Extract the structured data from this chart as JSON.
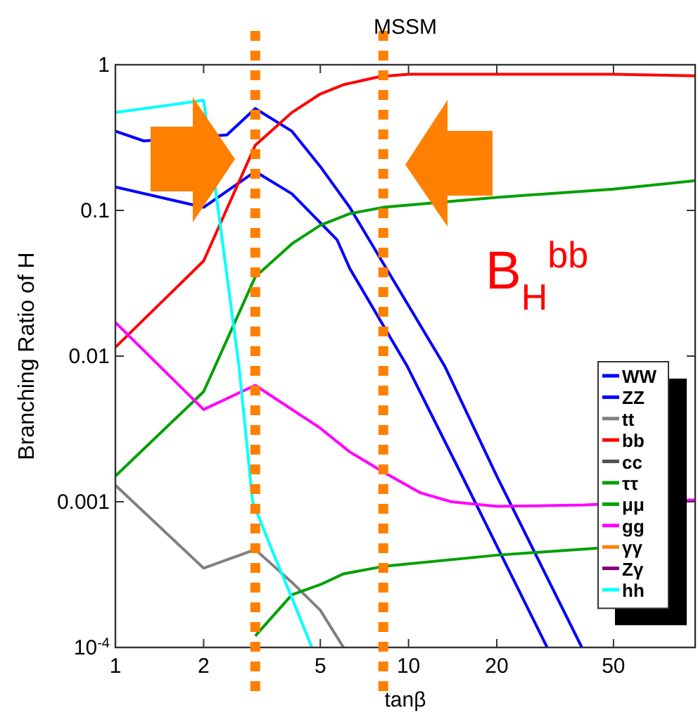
{
  "chart_data": {
    "type": "line",
    "title": "MSSM",
    "xlabel": "tanβ",
    "ylabel": "Branching Ratio of H",
    "log": "xy",
    "xlim": [
      1,
      95
    ],
    "ylim": [
      0.0001,
      1
    ],
    "xticks": [
      1,
      2,
      5,
      10,
      20,
      50
    ],
    "yticks": [
      {
        "value": 0.0001,
        "label": "10$^{-4}$"
      },
      0.001,
      0.01,
      0.1,
      1
    ],
    "grid": false,
    "marker": "none",
    "line_style": "solid",
    "legend": "bottom right",
    "annotations": [
      "B$_{H}$$^{bb}$"
    ],
    "ref_lines": [
      {
        "axis": "x",
        "value": 3,
        "color": "#ff8000",
        "line_style": "dotted"
      },
      {
        "axis": "x",
        "value": 8.2,
        "color": "#ff8000",
        "line_style": "dotted"
      }
    ],
    "series": [
      {
        "name": "WW",
        "color": "#0000ff",
        "x": [
          1,
          1.25,
          2.4,
          3,
          4,
          5,
          6.3,
          13.3,
          20,
          39
        ],
        "values": [
          0.35,
          0.3,
          0.33,
          0.5,
          0.35,
          0.2,
          0.105,
          0.0085,
          0.0015,
          0.0001
        ]
      },
      {
        "name": "ZZ",
        "color": "#0000ff",
        "x": [
          1,
          2,
          3,
          4,
          5.7,
          6.3,
          9.9,
          15,
          29.7
        ],
        "values": [
          0.145,
          0.105,
          0.185,
          0.13,
          0.063,
          0.04,
          0.0085,
          0.0016,
          0.0001
        ]
      },
      {
        "name": "tt",
        "color": "#808080",
        "x": [
          1,
          2,
          3,
          4,
          5,
          6
        ],
        "values": [
          0.0013,
          0.00035,
          0.00047,
          0.00028,
          0.00018,
          0.0001
        ]
      },
      {
        "name": "bb",
        "color": "#ff0000",
        "x": [
          1,
          2,
          3,
          4,
          5,
          6,
          8,
          10,
          20,
          50,
          95
        ],
        "values": [
          0.0115,
          0.045,
          0.28,
          0.47,
          0.63,
          0.73,
          0.83,
          0.86,
          0.86,
          0.86,
          0.84
        ]
      },
      {
        "name": "cc",
        "color": "#505050"
      },
      {
        "name": "ττ",
        "color": "#00a000",
        "x": [
          1,
          2,
          3,
          4,
          5,
          6.3,
          8.2,
          20,
          50,
          95
        ],
        "values": [
          0.0015,
          0.0057,
          0.035,
          0.059,
          0.079,
          0.095,
          0.105,
          0.123,
          0.14,
          0.16
        ]
      },
      {
        "name": "μμ",
        "color": "#00a000",
        "x": [
          3,
          4,
          5,
          6,
          8.2,
          20,
          44
        ],
        "values": [
          0.00012,
          0.00023,
          0.00027,
          0.00032,
          0.00036,
          0.00043,
          0.00048
        ]
      },
      {
        "name": "gg",
        "color": "#ff00ff",
        "x": [
          1,
          2,
          3,
          5,
          6.3,
          8.2,
          11,
          14,
          20,
          40,
          95
        ],
        "values": [
          0.017,
          0.0043,
          0.0063,
          0.0032,
          0.0022,
          0.0016,
          0.00115,
          0.001,
          0.00093,
          0.00095,
          0.00103
        ]
      },
      {
        "name": "γγ",
        "color": "#ff8000"
      },
      {
        "name": "Zγ",
        "color": "#800080"
      },
      {
        "name": "hh",
        "color": "#00ffff",
        "x": [
          1,
          2,
          2.64,
          2.94,
          3.4,
          3.96,
          4.68
        ],
        "values": [
          0.47,
          0.57,
          0.0085,
          0.001,
          0.00048,
          0.00023,
          0.0001
        ]
      }
    ]
  }
}
